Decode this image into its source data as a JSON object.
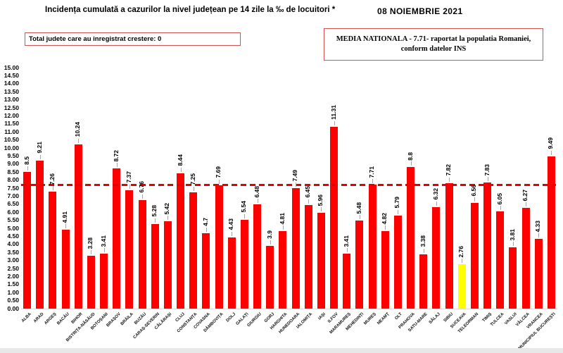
{
  "header": {
    "title": "Incidența cumulată a cazurilor la nivel județean pe 14 zile la ‰ de locuitori *",
    "date": "08 NOIEMBRIE 2021",
    "info_box": "Total judete care au inregistrat crestere: 0",
    "media_box_line1": "MEDIA NATIONALA - 7.71-  raportat la populatia  Romaniei,",
    "media_box_line2": "conform datelor INS"
  },
  "colors": {
    "bar": "#ff0000",
    "highlight_bar": "#ffff00",
    "average_line": "#e30000",
    "box_border": "#cf5350",
    "leader_line": "#a6a6a6"
  },
  "chart_data": {
    "type": "bar",
    "title": "Incidența cumulată a cazurilor la nivel județean pe 14 zile la ‰ de locuitori *",
    "xlabel": "",
    "ylabel": "",
    "ylim": [
      0,
      15
    ],
    "ytick_step": 0.5,
    "grid": "off",
    "legend": "none",
    "average_line": 7.71,
    "highlight_category": "SUCEAVA",
    "categories": [
      "ALBA",
      "ARAD",
      "ARGEȘ",
      "BACĂU",
      "BIHOR",
      "BISTRIȚA-NĂSĂUD",
      "BOTOȘANI",
      "BRAȘOV",
      "BRĂILA",
      "BUZĂU",
      "CARAȘ-SEVERIN",
      "CĂLĂRAȘI",
      "CLUJ",
      "CONSTANȚA",
      "COVASNA",
      "DÂMBOVIȚA",
      "DOLJ",
      "GALAȚI",
      "GIURGIU",
      "GORJ",
      "HARGHITA",
      "HUNEDOARA",
      "IALOMIȚA",
      "IAȘI",
      "ILFOV",
      "MARAMUREȘ",
      "MEHEDINȚI",
      "MUREȘ",
      "NEAMȚ",
      "OLT",
      "PRAHOVA",
      "SATU-MARE",
      "SĂLAJ",
      "SIBIU",
      "SUCEAVA",
      "TELEORMAN",
      "TIMIȘ",
      "TULCEA",
      "VASLUI",
      "VÂLCEA",
      "VRANCEA",
      "MUNICIPIUL BUCUREȘTI"
    ],
    "values": [
      8.5,
      9.21,
      7.26,
      4.91,
      10.24,
      3.28,
      3.41,
      8.72,
      7.37,
      6.76,
      5.28,
      5.42,
      8.44,
      7.25,
      4.7,
      7.69,
      4.43,
      5.54,
      6.48,
      3.9,
      4.81,
      7.49,
      6.45,
      5.96,
      11.31,
      3.41,
      5.48,
      7.71,
      4.82,
      5.79,
      8.8,
      3.38,
      6.32,
      7.82,
      2.76,
      6.56,
      7.83,
      6.05,
      3.81,
      6.27,
      4.33,
      9.49
    ]
  }
}
